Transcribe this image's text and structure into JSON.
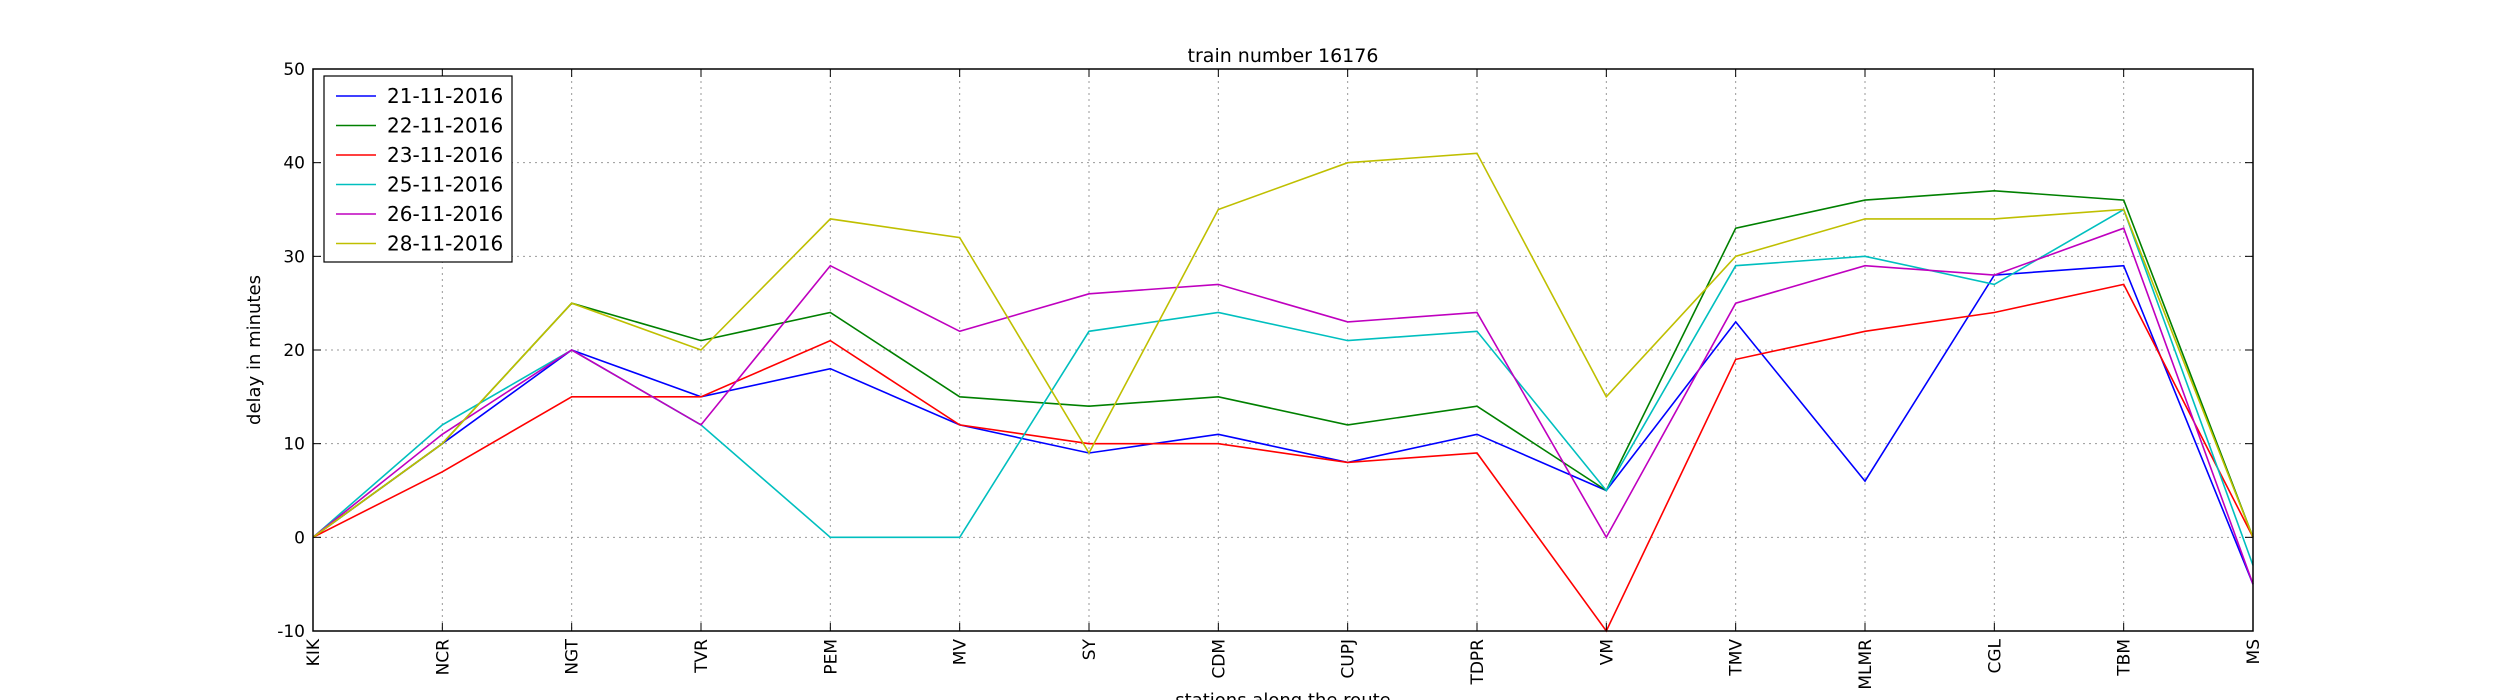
{
  "chart_data": {
    "type": "line",
    "title": "train number 16176",
    "xlabel": "stations along the route",
    "ylabel": "delay in minutes",
    "ylim": [
      -10,
      50
    ],
    "yticks": [
      -10,
      0,
      10,
      20,
      30,
      40,
      50
    ],
    "grid": true,
    "legend_position": "top-left",
    "categories": [
      "KIK",
      "NCR",
      "NGT",
      "TVR",
      "PEM",
      "MV",
      "SY",
      "CDM",
      "CUPJ",
      "TDPR",
      "VM",
      "TMV",
      "MLMR",
      "CGL",
      "TBM",
      "MS"
    ],
    "series": [
      {
        "name": "21-11-2016",
        "color": "#0000ff",
        "values": [
          0,
          10,
          20,
          15,
          18,
          12,
          9,
          11,
          8,
          11,
          5,
          23,
          6,
          28,
          29,
          -5
        ]
      },
      {
        "name": "22-11-2016",
        "color": "#008000",
        "values": [
          0,
          10,
          25,
          21,
          24,
          15,
          14,
          15,
          12,
          14,
          5,
          33,
          36,
          37,
          36,
          0
        ]
      },
      {
        "name": "23-11-2016",
        "color": "#ff0000",
        "values": [
          0,
          7,
          15,
          15,
          21,
          12,
          10,
          10,
          8,
          9,
          -10,
          19,
          22,
          24,
          27,
          0
        ]
      },
      {
        "name": "25-11-2016",
        "color": "#00bfbf",
        "values": [
          0,
          12,
          20,
          12,
          0,
          0,
          22,
          24,
          21,
          22,
          5,
          29,
          30,
          27,
          35,
          -3
        ]
      },
      {
        "name": "26-11-2016",
        "color": "#bf00bf",
        "values": [
          0,
          11,
          20,
          12,
          29,
          22,
          26,
          27,
          23,
          24,
          0,
          25,
          29,
          28,
          33,
          -5
        ]
      },
      {
        "name": "28-11-2016",
        "color": "#bfbf00",
        "values": [
          0,
          10,
          25,
          20,
          34,
          32,
          9,
          35,
          40,
          41,
          15,
          30,
          34,
          34,
          35,
          0
        ]
      }
    ]
  }
}
